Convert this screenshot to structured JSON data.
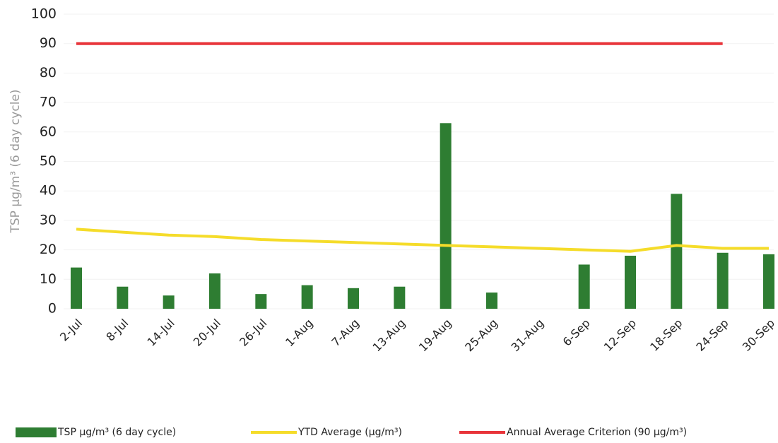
{
  "chart_data": {
    "type": "bar",
    "y_label": "TSP µg/m³ (6 day cycle)",
    "categories": [
      "2-Jul",
      "8-Jul",
      "14-Jul",
      "20-Jul",
      "26-Jul",
      "1-Aug",
      "7-Aug",
      "13-Aug",
      "19-Aug",
      "25-Aug",
      "31-Aug",
      "6-Sep",
      "12-Sep",
      "18-Sep",
      "24-Sep",
      "30-Sep"
    ],
    "series": [
      {
        "name": "TSP µg/m³ (6 day cycle)",
        "type": "bar",
        "color": "#2e7d32",
        "values": [
          14,
          7.5,
          4.5,
          12,
          5,
          8,
          7,
          7.5,
          63,
          5.5,
          null,
          15,
          18,
          39,
          19,
          18.5
        ]
      },
      {
        "name": "YTD  Average (µg/m³)",
        "type": "line",
        "color": "#f5dc2a",
        "values": [
          27,
          26,
          25,
          24.5,
          23.5,
          23,
          22.5,
          22,
          21.5,
          21,
          20.5,
          20,
          19.5,
          21.5,
          20.5,
          20.5
        ]
      },
      {
        "name": "Annual Average Criterion (90 µg/m³)",
        "type": "line",
        "color": "#e8343a",
        "values": [
          90,
          90,
          90,
          90,
          90,
          90,
          90,
          90,
          90,
          90,
          90,
          90,
          90,
          90,
          90,
          null
        ]
      }
    ],
    "ylim": [
      0,
      100
    ],
    "yticks": [
      0,
      10,
      20,
      30,
      40,
      50,
      60,
      70,
      80,
      90,
      100
    ],
    "grid": true
  }
}
